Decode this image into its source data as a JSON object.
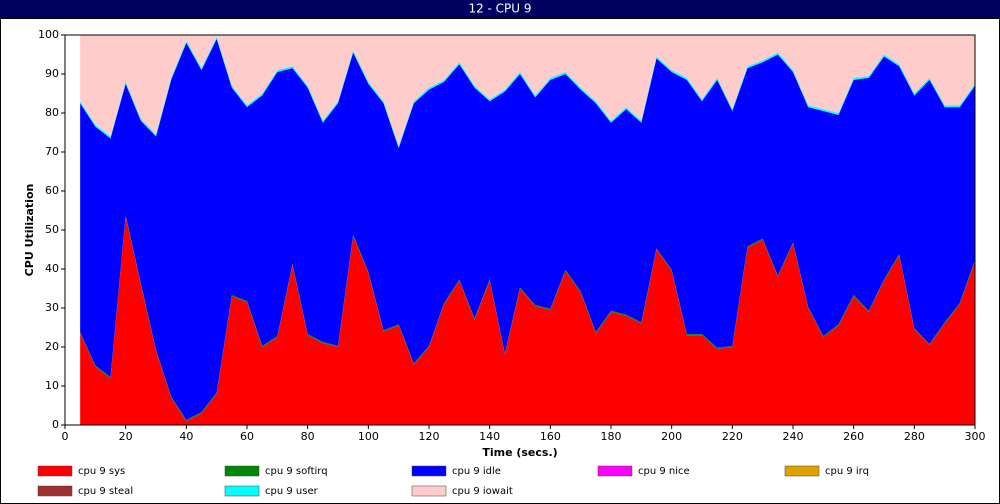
{
  "chart_data": {
    "type": "stacked_area",
    "title": "12 - CPU 9",
    "x_label": "Time (secs.)",
    "y_label": "CPU Utilization",
    "x": [
      5,
      10,
      15,
      20,
      25,
      30,
      35,
      40,
      45,
      50,
      55,
      60,
      65,
      70,
      75,
      80,
      85,
      90,
      95,
      100,
      105,
      110,
      115,
      120,
      125,
      130,
      135,
      140,
      145,
      150,
      155,
      160,
      165,
      170,
      175,
      180,
      185,
      190,
      195,
      200,
      205,
      210,
      215,
      220,
      225,
      230,
      235,
      240,
      245,
      250,
      255,
      260,
      265,
      270,
      275,
      280,
      285,
      290,
      295,
      300
    ],
    "xlim": [
      0,
      300
    ],
    "xticks": [
      0,
      20,
      40,
      60,
      80,
      100,
      120,
      140,
      160,
      180,
      200,
      220,
      240,
      260,
      280,
      300
    ],
    "ylim": [
      0,
      100
    ],
    "yticks": [
      0,
      10,
      20,
      30,
      40,
      50,
      60,
      70,
      80,
      90,
      100
    ],
    "series": [
      {
        "name": "cpu 9 sys",
        "color": "#ff0000",
        "values": [
          23.5,
          15,
          12,
          53.5,
          36,
          19,
          7,
          1,
          3,
          8,
          33,
          31.5,
          20,
          22.5,
          41,
          23,
          21,
          20,
          48.5,
          39,
          24,
          25.5,
          15.5,
          20,
          31,
          37,
          27,
          37,
          18,
          35,
          30.5,
          29.5,
          39.5,
          34,
          23.5,
          29,
          28,
          26,
          45,
          39.5,
          23,
          23,
          19.5,
          20,
          45.5,
          47.5,
          38,
          46.5,
          30,
          22.5,
          25.5,
          33,
          29,
          37,
          43.5,
          24.5,
          20.5,
          26,
          31,
          42
        ]
      },
      {
        "name": "cpu 9 softirq",
        "color": "#008800",
        "values": [
          0.3,
          0.3,
          0.3,
          0.3,
          0.3,
          0.3,
          0.3,
          0.3,
          0.3,
          0.3,
          0.3,
          0.3,
          0.3,
          0.3,
          0.3,
          0.3,
          0.3,
          0.3,
          0.3,
          0.3,
          0.3,
          0.3,
          0.3,
          0.3,
          0.3,
          0.3,
          0.3,
          0.3,
          0.3,
          0.3,
          0.3,
          0.3,
          0.3,
          0.3,
          0.3,
          0.3,
          0.3,
          0.3,
          0.3,
          0.3,
          0.3,
          0.3,
          0.3,
          0.3,
          0.3,
          0.3,
          0.3,
          0.3,
          0.3,
          0.3,
          0.3,
          0.3,
          0.3,
          0.3,
          0.3,
          0.3,
          0.3,
          0.3,
          0.3,
          0.3
        ]
      },
      {
        "name": "cpu 9 idle",
        "color": "#0000ff",
        "values": [
          58.7,
          61.2,
          61.2,
          33.7,
          41.7,
          54.7,
          81.2,
          96.7,
          87.7,
          90.7,
          53.2,
          49.7,
          64.2,
          67.7,
          50.2,
          63.2,
          56.2,
          62.2,
          46.7,
          48.2,
          58.2,
          45.2,
          66.7,
          65.7,
          56.7,
          55.2,
          59.2,
          45.7,
          67.2,
          54.7,
          53.2,
          58.7,
          50.2,
          51.7,
          58.7,
          48.2,
          52.7,
          51.2,
          48.7,
          50.7,
          65.2,
          59.7,
          68.7,
          60.2,
          45.7,
          45.2,
          56.7,
          43.7,
          51.2,
          57.7,
          53.7,
          55.2,
          59.7,
          57.2,
          48.2,
          59.7,
          67.7,
          55.2,
          50.2,
          44.7
        ]
      },
      {
        "name": "cpu 9 nice",
        "color": "#ff00ff",
        "values": [
          0,
          0,
          0,
          0,
          0,
          0,
          0,
          0,
          0,
          0,
          0,
          0,
          0,
          0,
          0,
          0,
          0,
          0,
          0,
          0,
          0,
          0,
          0,
          0,
          0,
          0,
          0,
          0,
          0,
          0,
          0,
          0,
          0,
          0,
          0,
          0,
          0,
          0,
          0,
          0,
          0,
          0,
          0,
          0,
          0,
          0,
          0,
          0,
          0,
          0,
          0,
          0,
          0,
          0,
          0,
          0,
          0,
          0,
          0,
          0
        ]
      },
      {
        "name": "cpu 9 irq",
        "color": "#e0a000",
        "values": [
          0,
          0,
          0,
          0,
          0,
          0,
          0,
          0,
          0,
          0,
          0,
          0,
          0,
          0,
          0,
          0,
          0,
          0,
          0,
          0,
          0,
          0,
          0,
          0,
          0,
          0,
          0,
          0,
          0,
          0,
          0,
          0,
          0,
          0,
          0,
          0,
          0,
          0,
          0,
          0,
          0,
          0,
          0,
          0,
          0,
          0,
          0,
          0,
          0,
          0,
          0,
          0,
          0,
          0,
          0,
          0,
          0,
          0,
          0,
          0
        ]
      },
      {
        "name": "cpu 9 steal",
        "color": "#a03030",
        "values": [
          0,
          0,
          0,
          0,
          0,
          0,
          0,
          0,
          0,
          0,
          0,
          0,
          0,
          0,
          0,
          0,
          0,
          0,
          0,
          0,
          0,
          0,
          0,
          0,
          0,
          0,
          0,
          0,
          0,
          0,
          0,
          0,
          0,
          0,
          0,
          0,
          0,
          0,
          0,
          0,
          0,
          0,
          0,
          0,
          0,
          0,
          0,
          0,
          0,
          0,
          0,
          0,
          0,
          0,
          0,
          0,
          0,
          0,
          0,
          0
        ]
      },
      {
        "name": "cpu 9 user",
        "color": "#00ffff",
        "values": [
          0.5,
          0.5,
          0.5,
          0.5,
          0.5,
          0.5,
          0.5,
          0.5,
          0.5,
          0.5,
          0.5,
          0.5,
          0.5,
          0.5,
          0.5,
          0.5,
          0.5,
          0.5,
          0.5,
          0.5,
          0.5,
          0.5,
          0.5,
          0.5,
          0.5,
          0.5,
          0.5,
          0.5,
          0.5,
          0.5,
          0.5,
          0.5,
          0.5,
          0.5,
          0.5,
          0.5,
          0.5,
          0.5,
          0.5,
          0.5,
          0.5,
          0.5,
          0.5,
          0.5,
          0.5,
          0.5,
          0.5,
          0.5,
          0.5,
          0.5,
          0.5,
          0.5,
          0.5,
          0.5,
          0.5,
          0.5,
          0.5,
          0.5,
          0.5,
          0.5
        ]
      },
      {
        "name": "cpu 9 iowait",
        "color": "#ffcccc",
        "values": [
          17,
          23,
          26,
          12,
          21.5,
          25.5,
          11,
          1.5,
          8.5,
          0.5,
          13,
          18,
          15,
          9,
          8,
          13,
          22,
          17,
          4,
          12,
          17,
          28.5,
          17,
          13.5,
          11.5,
          7,
          13,
          16.5,
          14,
          9.5,
          15.5,
          11,
          9.5,
          13.5,
          17,
          22,
          18.5,
          22,
          5.5,
          9,
          11,
          16.5,
          11,
          19,
          8,
          6.5,
          4.5,
          9,
          18,
          19,
          20,
          11,
          10.5,
          5,
          7.5,
          15,
          11,
          18,
          18,
          12.5
        ]
      }
    ]
  }
}
